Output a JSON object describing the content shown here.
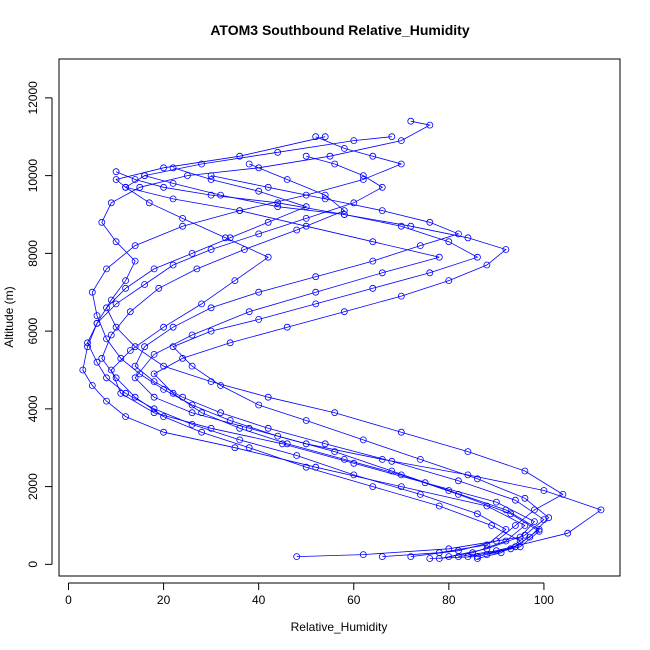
{
  "chart_data": {
    "type": "line",
    "title": "ATOM3 Southbound Relative_Humidity",
    "xlabel": "Relative_Humidity",
    "ylabel": "Altitude (m)",
    "xlim": [
      -2,
      116
    ],
    "ylim": [
      -300,
      13000
    ],
    "xticks": [
      0,
      20,
      40,
      60,
      80,
      100
    ],
    "yticks": [
      0,
      2000,
      4000,
      6000,
      8000,
      10000,
      12000
    ],
    "grid": false,
    "marker": "open-circle",
    "line_color": "#0000ff",
    "series": [
      {
        "x": [
          78,
          85,
          92,
          96,
          88,
          70,
          52,
          35,
          20,
          12,
          8,
          5,
          3,
          4,
          6,
          9,
          12,
          14,
          10,
          7,
          9,
          15,
          25,
          40,
          55,
          70,
          76,
          72
        ],
        "y": [
          150,
          300,
          600,
          1000,
          1500,
          2000,
          2500,
          3000,
          3400,
          3800,
          4200,
          4600,
          5000,
          5600,
          6200,
          6800,
          7300,
          7800,
          8300,
          8800,
          9300,
          9700,
          10000,
          10200,
          10500,
          10900,
          11300,
          11400
        ]
      },
      {
        "x": [
          48,
          62,
          80,
          95,
          98,
          90,
          75,
          60,
          45,
          30,
          18,
          11,
          9,
          13,
          20,
          28,
          35,
          42,
          33,
          24,
          17,
          12,
          16,
          28,
          44,
          60,
          68
        ],
        "y": [
          200,
          250,
          400,
          700,
          1100,
          1600,
          2100,
          2600,
          3100,
          3500,
          3900,
          4400,
          5000,
          5500,
          6100,
          6700,
          7300,
          7900,
          8400,
          8900,
          9300,
          9700,
          10000,
          10300,
          10600,
          10900,
          11000
        ]
      },
      {
        "x": [
          82,
          90,
          105,
          112,
          100,
          84,
          66,
          50,
          38,
          26,
          18,
          14,
          18,
          26,
          38,
          52,
          66,
          78,
          64,
          50,
          36,
          22,
          12,
          10,
          20,
          36,
          54
        ],
        "y": [
          200,
          350,
          800,
          1400,
          1900,
          2300,
          2700,
          3100,
          3500,
          3900,
          4300,
          4800,
          5400,
          5900,
          6500,
          7000,
          7500,
          7900,
          8300,
          8700,
          9100,
          9400,
          9700,
          9900,
          10200,
          10500,
          11000
        ]
      },
      {
        "x": [
          76,
          86,
          94,
          99,
          92,
          80,
          68,
          56,
          44,
          34,
          26,
          20,
          15,
          11,
          8,
          6,
          5,
          8,
          14,
          24,
          36,
          50,
          62,
          70,
          64,
          58,
          52
        ],
        "y": [
          150,
          200,
          450,
          900,
          1400,
          1900,
          2400,
          2900,
          3300,
          3700,
          4100,
          4500,
          4900,
          5300,
          5800,
          6400,
          7000,
          7600,
          8200,
          8700,
          9100,
          9500,
          9900,
          10300,
          10500,
          10700,
          11000
        ]
      },
      {
        "x": [
          84,
          93,
          97,
          101,
          96,
          86,
          74,
          62,
          50,
          40,
          32,
          26,
          22,
          30,
          40,
          52,
          64,
          76,
          86,
          80,
          70,
          58,
          44,
          30,
          20,
          14,
          10
        ],
        "y": [
          200,
          400,
          700,
          1200,
          1700,
          2200,
          2700,
          3200,
          3700,
          4100,
          4600,
          5100,
          5600,
          6000,
          6300,
          6700,
          7100,
          7500,
          7900,
          8300,
          8700,
          9000,
          9300,
          9500,
          9700,
          9900,
          10100
        ]
      },
      {
        "x": [
          66,
          78,
          88,
          92,
          86,
          74,
          60,
          48,
          36,
          26,
          18,
          12,
          8,
          6,
          4,
          6,
          10,
          16,
          22,
          30,
          40,
          50,
          60,
          66,
          62,
          56,
          50
        ],
        "y": [
          200,
          300,
          500,
          900,
          1300,
          1800,
          2300,
          2800,
          3200,
          3600,
          4000,
          4400,
          4800,
          5200,
          5700,
          6200,
          6700,
          7200,
          7700,
          8100,
          8500,
          8900,
          9300,
          9700,
          10000,
          10300,
          10500
        ]
      },
      {
        "x": [
          88,
          95,
          99,
          93,
          82,
          70,
          58,
          46,
          36,
          28,
          22,
          18,
          24,
          34,
          46,
          58,
          70,
          80,
          88,
          92,
          84,
          72,
          58,
          44,
          32,
          22,
          16
        ],
        "y": [
          250,
          450,
          850,
          1300,
          1800,
          2300,
          2700,
          3100,
          3500,
          3900,
          4400,
          4900,
          5300,
          5700,
          6100,
          6500,
          6900,
          7300,
          7700,
          8100,
          8400,
          8700,
          9000,
          9200,
          9500,
          9800,
          10000
        ]
      },
      {
        "x": [
          72,
          82,
          90,
          94,
          98,
          104,
          96,
          84,
          70,
          56,
          42,
          30,
          20,
          14,
          10,
          8,
          12,
          18,
          26,
          34,
          42,
          50,
          40,
          30,
          22
        ],
        "y": [
          200,
          350,
          600,
          1000,
          1400,
          1800,
          2400,
          2900,
          3400,
          3900,
          4300,
          4700,
          5100,
          5600,
          6100,
          6600,
          7100,
          7600,
          8000,
          8400,
          8800,
          9200,
          9600,
          9900,
          10200
        ]
      },
      {
        "x": [
          86,
          91,
          95,
          89,
          78,
          64,
          50,
          38,
          28,
          20,
          14,
          10,
          7,
          9,
          13,
          19,
          27,
          37,
          48,
          58,
          54,
          46,
          38
        ],
        "y": [
          150,
          300,
          600,
          1000,
          1500,
          2000,
          2500,
          3000,
          3400,
          3800,
          4300,
          4800,
          5300,
          5900,
          6500,
          7100,
          7600,
          8100,
          8600,
          9100,
          9500,
          9900,
          10300
        ]
      },
      {
        "x": [
          80,
          88,
          96,
          100,
          94,
          82,
          68,
          54,
          42,
          32,
          24,
          18,
          14,
          16,
          22,
          30,
          40,
          52,
          64,
          74,
          82,
          76,
          66,
          54,
          42,
          30
        ],
        "y": [
          200,
          400,
          750,
          1150,
          1650,
          2150,
          2650,
          3100,
          3500,
          3900,
          4300,
          4700,
          5100,
          5600,
          6100,
          6600,
          7000,
          7400,
          7800,
          8200,
          8500,
          8800,
          9100,
          9400,
          9700,
          10000
        ]
      }
    ]
  }
}
